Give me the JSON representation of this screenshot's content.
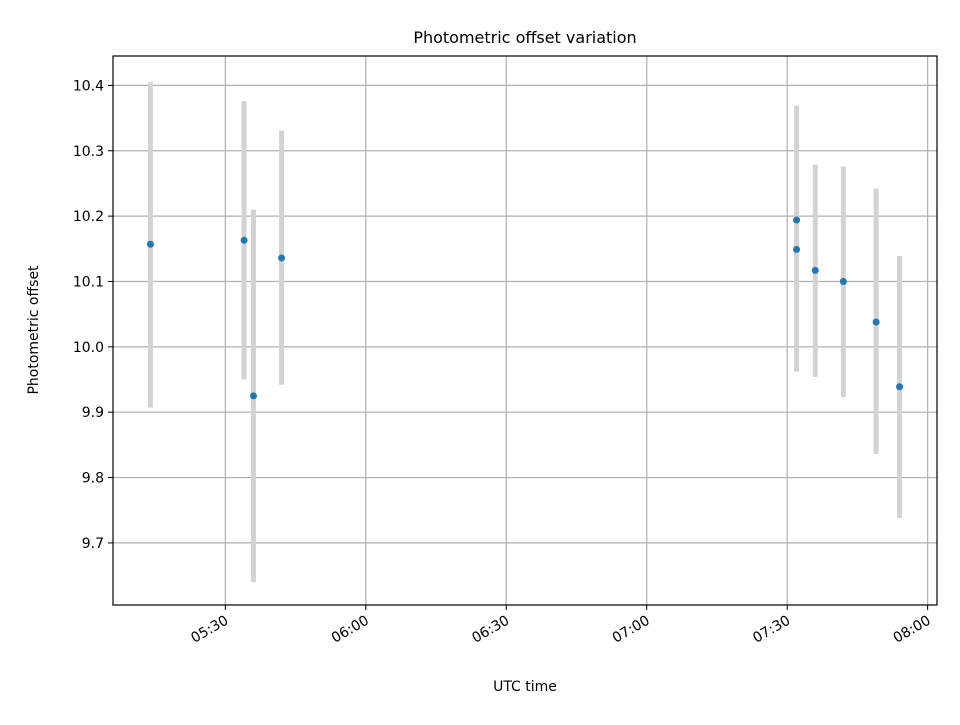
{
  "chart_data": {
    "type": "scatter",
    "title": "Photometric offset variation",
    "xlabel": "UTC time",
    "ylabel": "Photometric offset",
    "x_axis_type": "time",
    "xlim": [
      "05:06",
      "08:02"
    ],
    "ylim": [
      9.605,
      10.445
    ],
    "x_ticks": [
      "05:30",
      "06:00",
      "06:30",
      "07:00",
      "07:30",
      "08:00"
    ],
    "y_ticks": [
      9.7,
      9.8,
      9.9,
      10.0,
      10.1,
      10.2,
      10.3,
      10.4
    ],
    "y_tick_labels": [
      "9.7",
      "9.8",
      "9.9",
      "10.0",
      "10.1",
      "10.2",
      "10.3",
      "10.4"
    ],
    "grid": true,
    "series": [
      {
        "marker": "point",
        "errorbars": true,
        "points": [
          {
            "x": "05:14",
            "y": 10.157,
            "err_low": 9.907,
            "err_high": 10.405
          },
          {
            "x": "05:34",
            "y": 10.163,
            "err_low": 9.95,
            "err_high": 10.376
          },
          {
            "x": "05:36",
            "y": 9.925,
            "err_low": 9.64,
            "err_high": 10.21
          },
          {
            "x": "05:42",
            "y": 10.136,
            "err_low": 9.942,
            "err_high": 10.331
          },
          {
            "x": "07:32",
            "y": 10.194,
            "err_low": 10.019,
            "err_high": 10.369
          },
          {
            "x": "07:32",
            "y": 10.149,
            "err_low": 9.962,
            "err_high": 10.336
          },
          {
            "x": "07:36",
            "y": 10.117,
            "err_low": 9.954,
            "err_high": 10.279
          },
          {
            "x": "07:42",
            "y": 10.1,
            "err_low": 9.923,
            "err_high": 10.276
          },
          {
            "x": "07:49",
            "y": 10.038,
            "err_low": 9.836,
            "err_high": 10.242
          },
          {
            "x": "07:54",
            "y": 9.939,
            "err_low": 9.738,
            "err_high": 10.139
          }
        ]
      }
    ],
    "colors": {
      "point": "#1f77b4",
      "errorbar": "#d3d3d3",
      "grid": "#b0b0b0",
      "axes": "#000000"
    }
  }
}
